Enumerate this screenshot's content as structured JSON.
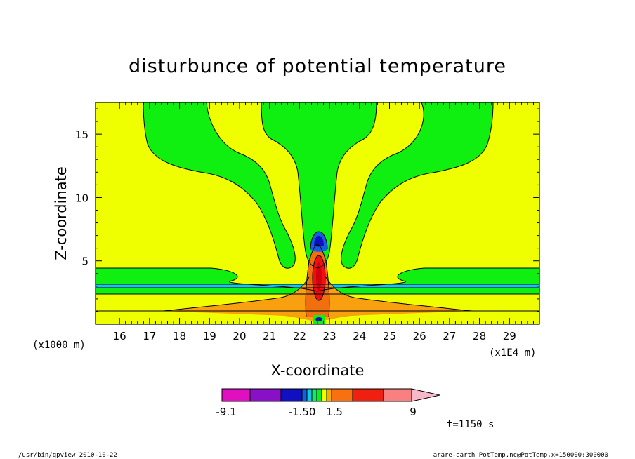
{
  "chart_data": {
    "type": "heatmap",
    "title": "disturbunce of potential temperature",
    "xlabel": "X-coordinate",
    "ylabel": "Z-coordinate",
    "x_unit_label": "(x1E4 m)",
    "y_unit_label": "(x1000 m)",
    "xlim": [
      15.2,
      30.0
    ],
    "ylim": [
      0.0,
      17.5
    ],
    "x_ticks": [
      "16",
      "17",
      "18",
      "19",
      "20",
      "21",
      "22",
      "23",
      "24",
      "25",
      "26",
      "27",
      "28",
      "29"
    ],
    "y_ticks": [
      "5",
      "10",
      "15"
    ],
    "colorbar": {
      "labels": [
        {
          "text": "-9.1",
          "value": -9.1
        },
        {
          "text": "-1.50",
          "value": -1.5
        },
        {
          "text": "1.5",
          "value": 1.5
        },
        {
          "text": "9",
          "value": 9
        }
      ],
      "colors": [
        "#e010c0",
        "#8a10c8",
        "#1010c0",
        "#1060e0",
        "#10c8e8",
        "#10e870",
        "#10f010",
        "#f0ff00",
        "#f8b000",
        "#f87010",
        "#f02010",
        "#f88080",
        "#f8b8c8"
      ]
    },
    "annotation": "t=1150 s",
    "regions": {
      "background": "#f0ff00",
      "green": "#10f010",
      "cyan": "#10c8e8",
      "orange": "#f88010",
      "dark_orange": "#f05a10",
      "red": "#f01010",
      "blue": "#1060e0",
      "dark_blue": "#1010c0"
    }
  },
  "footer": {
    "left": "/usr/bin/gpview   2010-10-22",
    "right": "arare-earth_PotTemp.nc@PotTemp,x=150000:300000"
  }
}
